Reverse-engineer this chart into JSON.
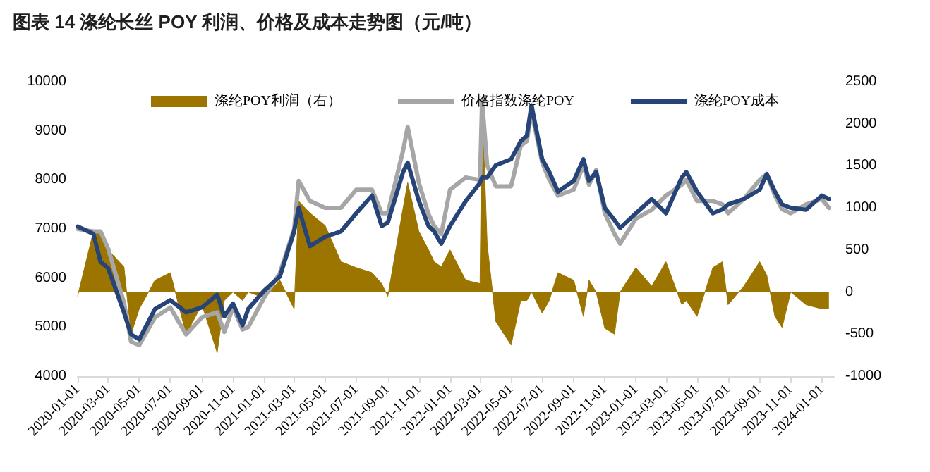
{
  "chart_data": {
    "type": "line",
    "title": "图表 14 涤纶长丝 POY 利润、价格及成本走势图（元/吨）",
    "x": [
      "2020-01-01",
      "2020-02-01",
      "2020-02-15",
      "2020-03-01",
      "2020-04-01",
      "2020-04-15",
      "2020-05-01",
      "2020-06-01",
      "2020-07-01",
      "2020-08-01",
      "2020-09-01",
      "2020-10-01",
      "2020-10-15",
      "2020-11-01",
      "2020-11-20",
      "2020-12-01",
      "2021-01-01",
      "2021-02-01",
      "2021-03-01",
      "2021-03-10",
      "2021-04-01",
      "2021-05-01",
      "2021-06-01",
      "2021-07-01",
      "2021-08-01",
      "2021-08-20",
      "2021-09-01",
      "2021-10-01",
      "2021-10-10",
      "2021-11-01",
      "2021-11-20",
      "2021-12-01",
      "2021-12-15",
      "2022-01-01",
      "2022-02-01",
      "2022-03-01",
      "2022-03-05",
      "2022-03-15",
      "2022-04-01",
      "2022-05-01",
      "2022-05-20",
      "2022-06-01",
      "2022-06-10",
      "2022-07-01",
      "2022-07-15",
      "2022-08-01",
      "2022-09-01",
      "2022-09-20",
      "2022-10-01",
      "2022-10-15",
      "2022-11-01",
      "2022-11-20",
      "2022-12-01",
      "2023-01-01",
      "2023-02-01",
      "2023-03-01",
      "2023-04-01",
      "2023-04-10",
      "2023-05-01",
      "2023-06-01",
      "2023-06-20",
      "2023-07-01",
      "2023-08-01",
      "2023-09-01",
      "2023-09-15",
      "2023-10-01",
      "2023-10-15",
      "2023-11-01",
      "2023-12-01",
      "2024-01-01",
      "2024-01-15"
    ],
    "series": [
      {
        "name": "涤纶POY利润（右）",
        "type": "area",
        "axis": "y2",
        "color": "#9c7500",
        "values": [
          -50,
          720,
          700,
          500,
          300,
          -500,
          -200,
          140,
          230,
          -500,
          -150,
          -720,
          -100,
          0,
          -100,
          0,
          -70,
          140,
          -200,
          1080,
          940,
          790,
          360,
          290,
          230,
          100,
          -50,
          1000,
          1300,
          720,
          500,
          360,
          300,
          500,
          140,
          100,
          2290,
          570,
          -350,
          -630,
          -100,
          -100,
          0,
          -250,
          -100,
          230,
          140,
          -290,
          140,
          0,
          -430,
          -500,
          0,
          290,
          70,
          360,
          -150,
          -100,
          -290,
          290,
          360,
          -150,
          70,
          360,
          200,
          -290,
          -420,
          0,
          -150,
          -200,
          -200
        ]
      },
      {
        "name": "价格指数涤纶POY",
        "color": "#a6a6a6",
        "values": [
          7000,
          6950,
          6950,
          6600,
          5500,
          4700,
          4630,
          5200,
          5400,
          4850,
          5200,
          5300,
          4900,
          5400,
          4950,
          5000,
          5600,
          6100,
          7000,
          7980,
          7570,
          7430,
          7430,
          7800,
          7800,
          7320,
          7320,
          8600,
          9080,
          7940,
          7300,
          7060,
          6900,
          7800,
          8050,
          8000,
          9630,
          8300,
          7870,
          7870,
          8700,
          8790,
          9400,
          8350,
          8000,
          7680,
          7800,
          8300,
          7900,
          8200,
          7320,
          6900,
          6700,
          7210,
          7390,
          7680,
          7900,
          8000,
          7570,
          7570,
          7500,
          7320,
          7610,
          8000,
          8120,
          7680,
          7400,
          7320,
          7500,
          7610,
          7430
        ]
      },
      {
        "name": "涤纶POY成本",
        "color": "#264478",
        "values": [
          7050,
          6900,
          6330,
          6200,
          5300,
          4850,
          4750,
          5370,
          5550,
          5300,
          5400,
          5660,
          5220,
          5480,
          5040,
          5370,
          5740,
          6030,
          6950,
          7430,
          6650,
          6840,
          6950,
          7320,
          7680,
          7060,
          7130,
          8160,
          8350,
          7570,
          7060,
          6950,
          6700,
          7060,
          7570,
          7940,
          8050,
          8050,
          8300,
          8420,
          8790,
          8900,
          9520,
          8420,
          8160,
          7760,
          7980,
          8420,
          7980,
          8160,
          7430,
          7180,
          7020,
          7320,
          7610,
          7320,
          8050,
          8160,
          7760,
          7320,
          7400,
          7500,
          7610,
          7800,
          8120,
          7760,
          7500,
          7430,
          7390,
          7680,
          7610
        ]
      }
    ],
    "xlim": [
      "2020-01-01",
      "2024-01-25"
    ],
    "xticks": [
      "2020-01-01",
      "2020-03-01",
      "2020-05-01",
      "2020-07-01",
      "2020-09-01",
      "2020-11-01",
      "2021-01-01",
      "2021-03-01",
      "2021-05-01",
      "2021-07-01",
      "2021-09-01",
      "2021-11-01",
      "2022-01-01",
      "2022-03-01",
      "2022-05-01",
      "2022-07-01",
      "2022-09-01",
      "2022-11-01",
      "2023-01-01",
      "2023-03-01",
      "2023-05-01",
      "2023-07-01",
      "2023-09-01",
      "2023-11-01",
      "2024-01-01"
    ],
    "ylim": [
      4000,
      10000
    ],
    "yticks": [
      4000,
      5000,
      6000,
      7000,
      8000,
      9000,
      10000
    ],
    "y2lim": [
      -1000,
      2500
    ],
    "y2ticks": [
      -1000,
      -500,
      0,
      500,
      1000,
      1500,
      2000,
      2500
    ],
    "legend": "top",
    "grid": false
  }
}
